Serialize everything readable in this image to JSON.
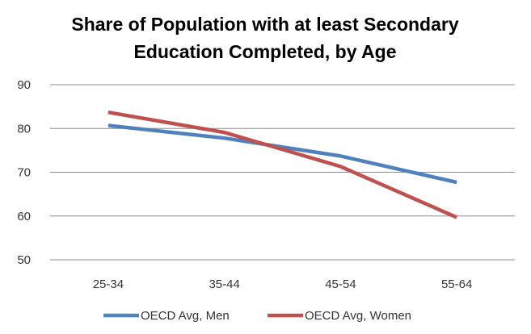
{
  "chart_data": {
    "type": "line",
    "title_lines": [
      "Share of Population with at least Secondary",
      "Education Completed, by Age"
    ],
    "xlabel": "",
    "ylabel": "",
    "categories": [
      "25-34",
      "35-44",
      "45-54",
      "55-64"
    ],
    "ylim": [
      50,
      90
    ],
    "yticks": [
      50,
      60,
      70,
      80,
      90
    ],
    "grid": true,
    "legend_position": "bottom",
    "series": [
      {
        "name": "OECD Avg, Men",
        "color": "#4f81bd",
        "values": [
          80.7,
          77.8,
          73.7,
          67.7
        ]
      },
      {
        "name": "OECD Avg, Women",
        "color": "#c0504d",
        "values": [
          83.7,
          79.1,
          71.3,
          59.7
        ]
      }
    ]
  }
}
